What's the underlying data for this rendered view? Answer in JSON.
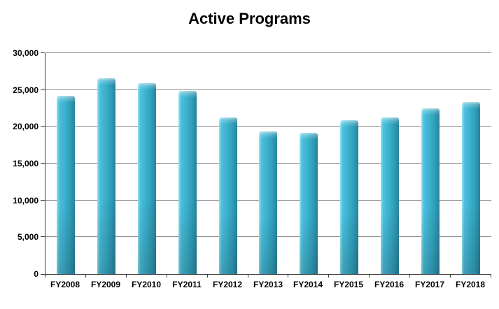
{
  "title": "Active Programs",
  "colors": {
    "background": "#ffffff",
    "bar_body": "#3aaecb",
    "bar_highlight": "#93e6f4",
    "bar_shadow": "#27839c",
    "axis": "#404040",
    "gridline": "#8a8a8a",
    "text": "#000000"
  },
  "chart_data": {
    "type": "bar",
    "title": "Active Programs",
    "categories": [
      "FY2008",
      "FY2009",
      "FY2010",
      "FY2011",
      "FY2012",
      "FY2013",
      "FY2014",
      "FY2015",
      "FY2016",
      "FY2017",
      "FY2018"
    ],
    "values": [
      24200,
      26600,
      25900,
      24900,
      21300,
      19400,
      19200,
      20900,
      21300,
      22500,
      23400
    ],
    "xlabel": "",
    "ylabel": "",
    "ylim": [
      0,
      30000
    ],
    "ytick_interval": 5000,
    "yticks": [
      0,
      5000,
      10000,
      15000,
      20000,
      25000,
      30000
    ],
    "ytick_labels": [
      "0",
      "5,000",
      "10,000",
      "15,000",
      "20,000",
      "25,000",
      "30,000"
    ],
    "grid": true,
    "legend": false,
    "bar_color": "#3aaecb"
  }
}
